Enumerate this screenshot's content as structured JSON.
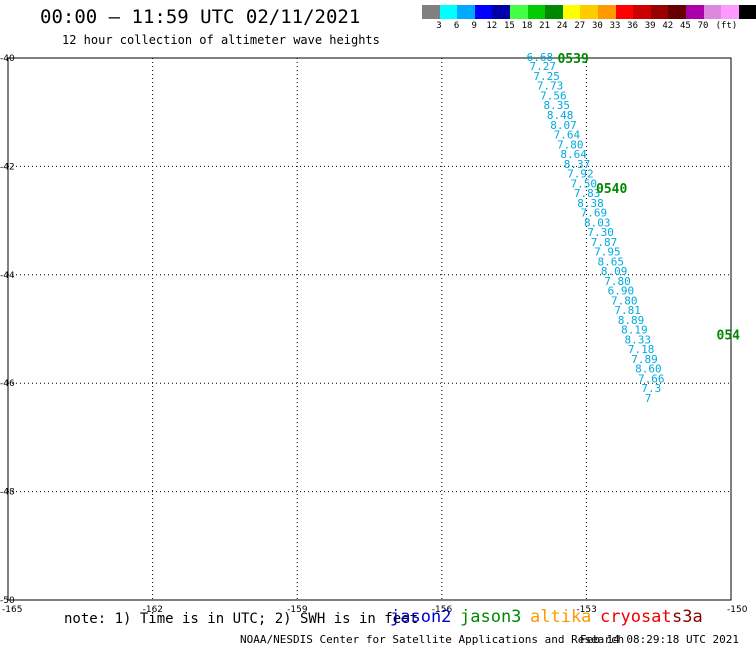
{
  "header": {
    "title": "00:00 – 11:59 UTC 02/11/2021",
    "subtitle": "12 hour collection of altimeter wave heights"
  },
  "legend": {
    "colors": [
      "#808080",
      "#00ffff",
      "#00aaff",
      "#0000ff",
      "#0000aa",
      "#44ff44",
      "#00cc00",
      "#008800",
      "#ffff00",
      "#ffcc00",
      "#ff9900",
      "#ff0000",
      "#cc0000",
      "#990000",
      "#660000",
      "#aa00aa",
      "#dd88dd",
      "#ff99ff",
      "#000000"
    ],
    "labels": [
      "3",
      "6",
      "9",
      "12",
      "15",
      "18",
      "21",
      "24",
      "27",
      "30",
      "33",
      "36",
      "39",
      "42",
      "45",
      "70",
      "(ft)"
    ]
  },
  "map": {
    "lon_labels": [
      "-165",
      "-162",
      "-159",
      "-156",
      "-153",
      "-150"
    ],
    "lat_labels": [
      "-40",
      "-42",
      "-44",
      "-46",
      "-48",
      "-50"
    ],
    "lon_range": [
      -165,
      -150
    ],
    "lat_range": [
      -50,
      -40
    ],
    "grid": "dotted",
    "track_color": "#00aadd",
    "time_color": "#008800",
    "time_labels": [
      {
        "text": "0539",
        "lon": -153.6,
        "lat": -40.0
      },
      {
        "text": "0540",
        "lon": -152.8,
        "lat": -42.4
      },
      {
        "text": "054",
        "lon": -150.3,
        "lat": -45.1
      }
    ],
    "wave_heights": [
      {
        "text": "6.68",
        "lon": -154.24,
        "lat": -40.0
      },
      {
        "text": "7.27",
        "lon": -154.18,
        "lat": -40.17
      },
      {
        "text": "7.25",
        "lon": -154.1,
        "lat": -40.35
      },
      {
        "text": "7.73",
        "lon": -154.03,
        "lat": -40.53
      },
      {
        "text": "7.56",
        "lon": -153.96,
        "lat": -40.71
      },
      {
        "text": "8.35",
        "lon": -153.89,
        "lat": -40.89
      },
      {
        "text": "8.48",
        "lon": -153.82,
        "lat": -41.07
      },
      {
        "text": "8.07",
        "lon": -153.75,
        "lat": -41.25
      },
      {
        "text": "7.64",
        "lon": -153.68,
        "lat": -41.43
      },
      {
        "text": "7.80",
        "lon": -153.61,
        "lat": -41.61
      },
      {
        "text": "8.64",
        "lon": -153.54,
        "lat": -41.79
      },
      {
        "text": "8.37",
        "lon": -153.47,
        "lat": -41.97
      },
      {
        "text": "7.92",
        "lon": -153.4,
        "lat": -42.15
      },
      {
        "text": "7.50",
        "lon": -153.33,
        "lat": -42.33
      },
      {
        "text": "7.83",
        "lon": -153.26,
        "lat": -42.51
      },
      {
        "text": "8.38",
        "lon": -153.19,
        "lat": -42.69
      },
      {
        "text": "7.69",
        "lon": -153.12,
        "lat": -42.87
      },
      {
        "text": "8.03",
        "lon": -153.05,
        "lat": -43.05
      },
      {
        "text": "7.30",
        "lon": -152.98,
        "lat": -43.23
      },
      {
        "text": "7.87",
        "lon": -152.91,
        "lat": -43.41
      },
      {
        "text": "7.95",
        "lon": -152.84,
        "lat": -43.59
      },
      {
        "text": "8.65",
        "lon": -152.77,
        "lat": -43.77
      },
      {
        "text": "8.09",
        "lon": -152.7,
        "lat": -43.95
      },
      {
        "text": "7.80",
        "lon": -152.63,
        "lat": -44.13
      },
      {
        "text": "6.90",
        "lon": -152.56,
        "lat": -44.31
      },
      {
        "text": "7.80",
        "lon": -152.49,
        "lat": -44.49
      },
      {
        "text": "7.81",
        "lon": -152.42,
        "lat": -44.67
      },
      {
        "text": "8.89",
        "lon": -152.35,
        "lat": -44.85
      },
      {
        "text": "8.19",
        "lon": -152.28,
        "lat": -45.03
      },
      {
        "text": "8.33",
        "lon": -152.21,
        "lat": -45.21
      },
      {
        "text": "7.18",
        "lon": -152.14,
        "lat": -45.39
      },
      {
        "text": "7.89",
        "lon": -152.07,
        "lat": -45.57
      },
      {
        "text": "8.60",
        "lon": -151.99,
        "lat": -45.75
      },
      {
        "text": "7.66",
        "lon": -151.93,
        "lat": -45.93
      },
      {
        "text": "7.3",
        "lon": -151.86,
        "lat": -46.11
      },
      {
        "text": "7",
        "lon": -151.79,
        "lat": -46.29
      }
    ]
  },
  "footer": {
    "note": "note: 1) Time is in UTC; 2) SWH is in feet",
    "satellites": [
      {
        "name": "jason2",
        "color": "#0000cc"
      },
      {
        "name": "jason3",
        "color": "#008800"
      },
      {
        "name": "altika",
        "color": "#ff9900"
      },
      {
        "name": "cryosat",
        "color": "#ee0000"
      },
      {
        "name": "s3a",
        "color": "#880000"
      }
    ],
    "source": "NOAA/NESDIS Center for Satellite Applications and Research",
    "timestamp": "Feb 14 08:29:18 UTC 2021"
  }
}
